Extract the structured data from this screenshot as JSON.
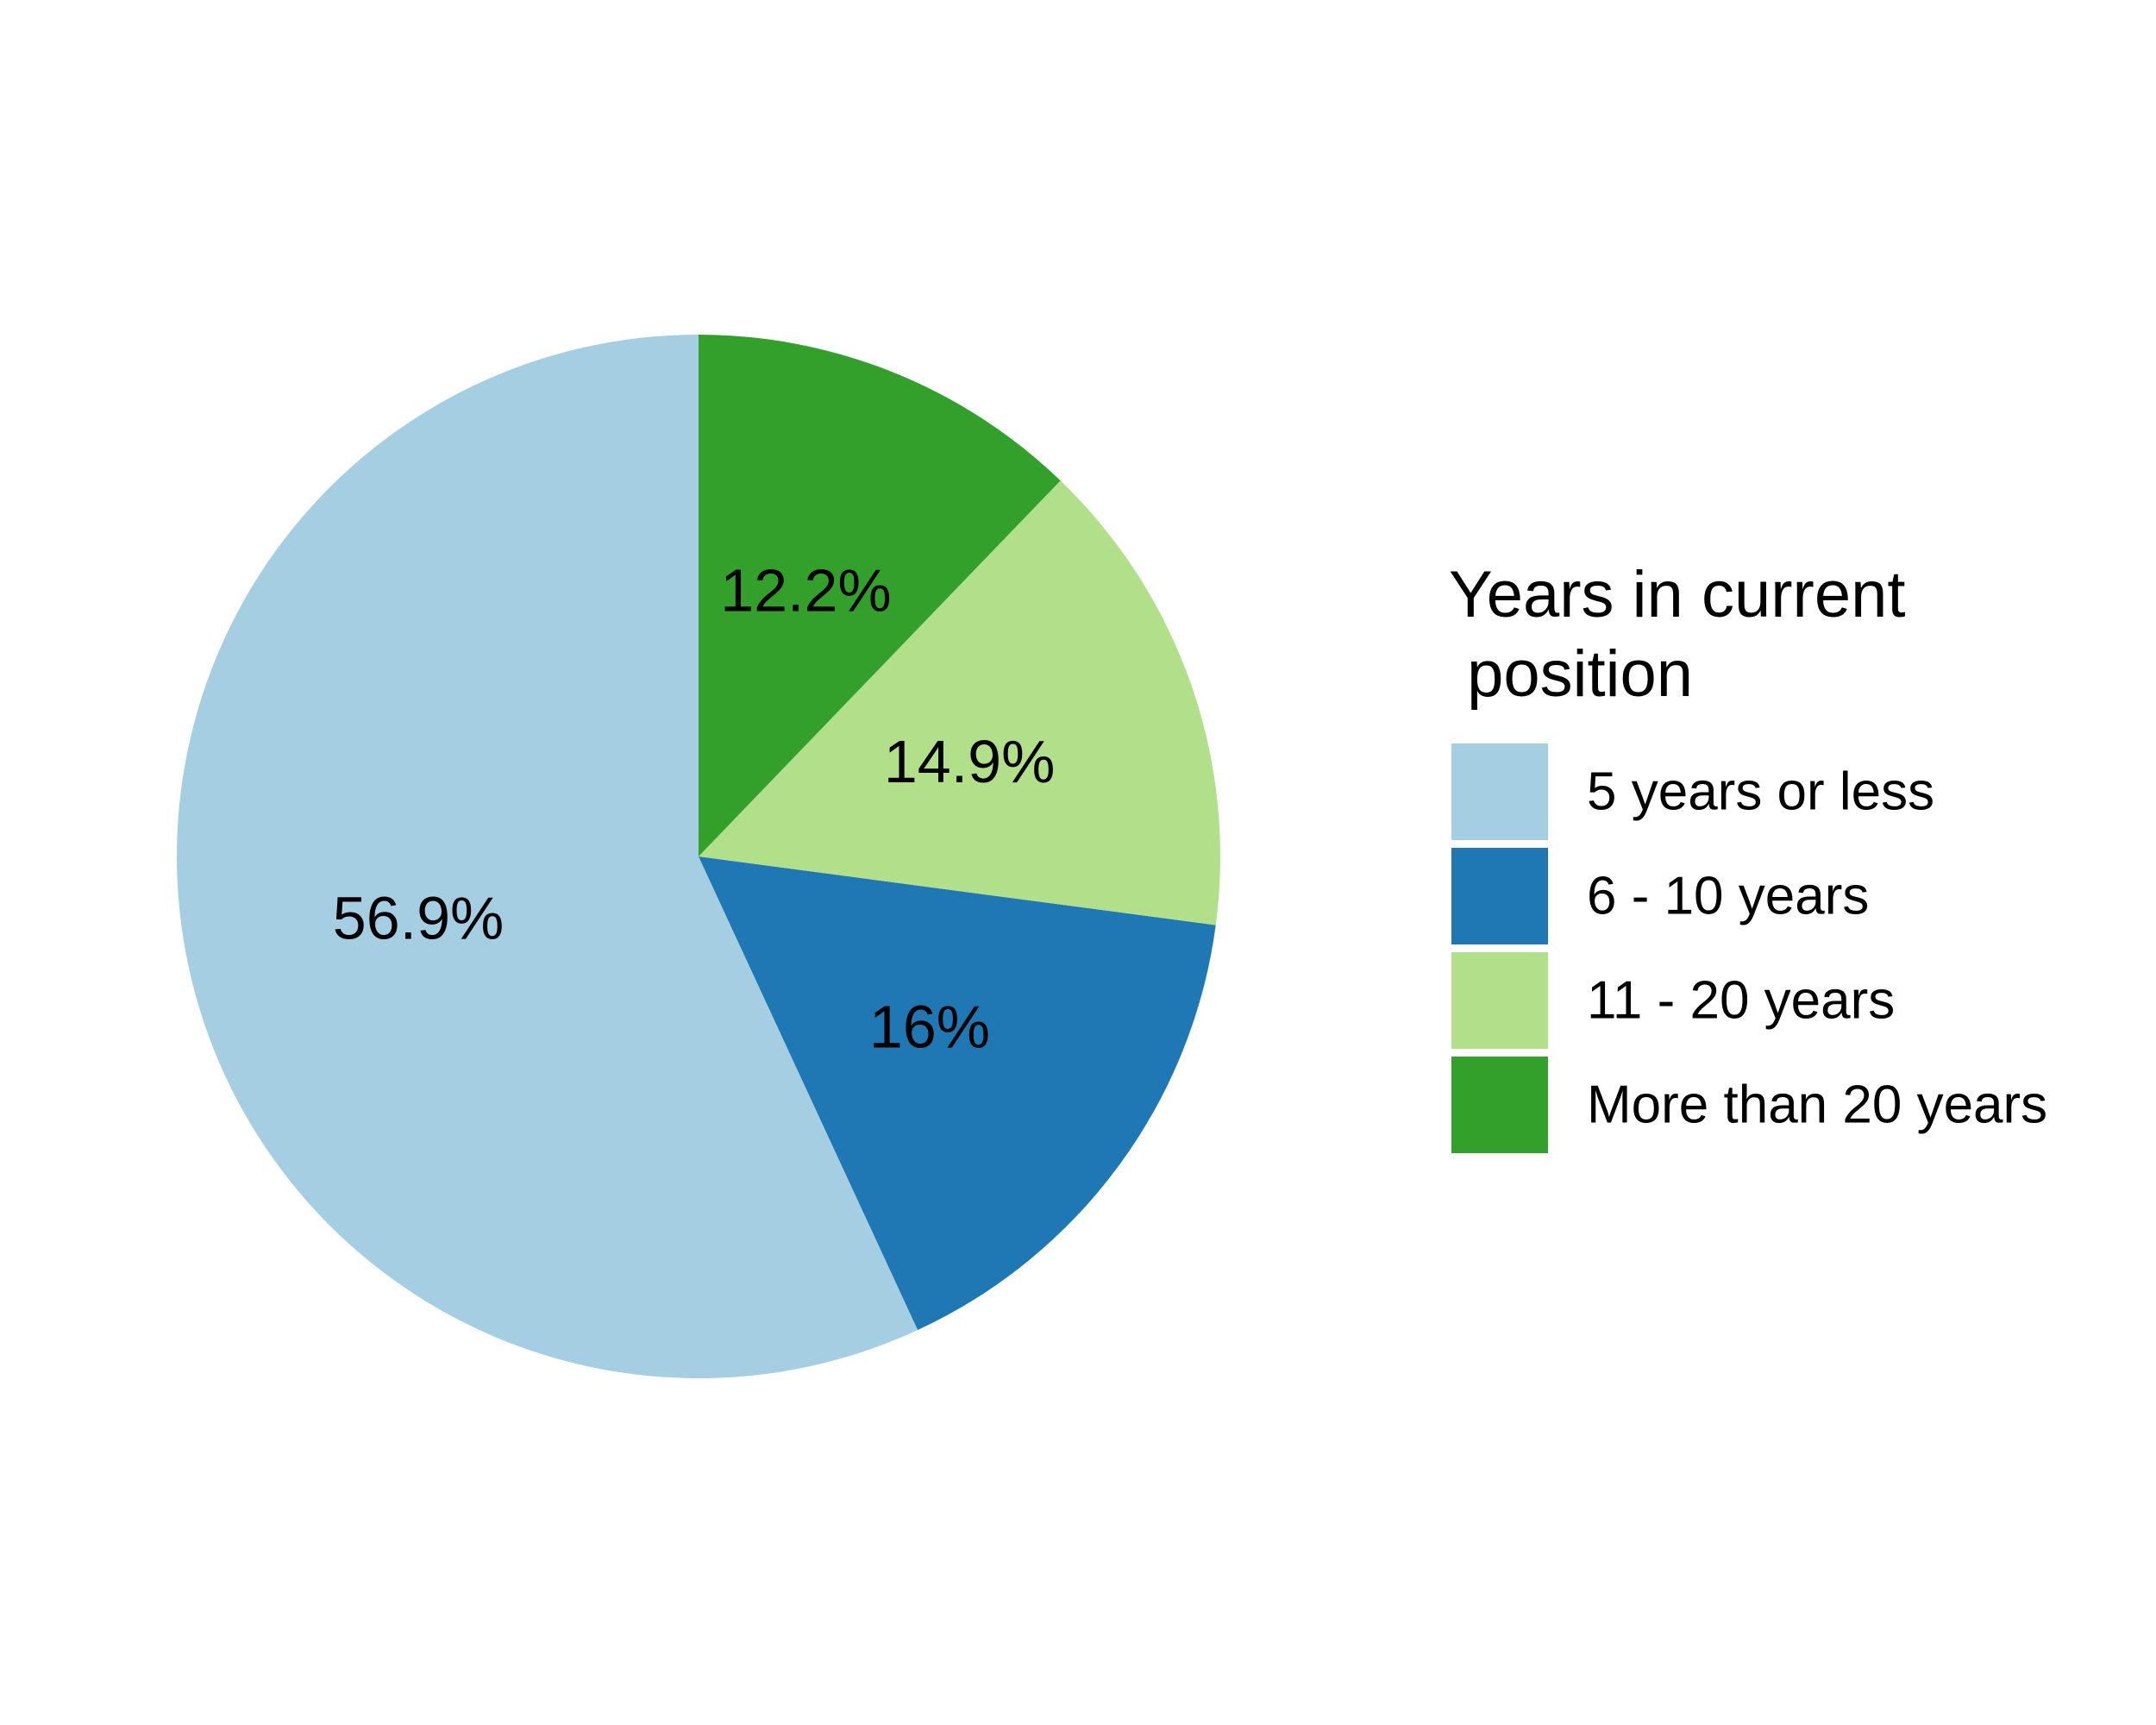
{
  "chart_data": {
    "type": "pie",
    "legend_title_lines": [
      "Years in current",
      " position"
    ],
    "legend_position": "right",
    "start": "top",
    "direction": "counterclockwise",
    "slices": [
      {
        "category": "5 years or less",
        "value": 56.9,
        "label": "56.9%",
        "color": "#a6cee3"
      },
      {
        "category": "6 - 10 years",
        "value": 16.0,
        "label": "16%",
        "color": "#1f78b4"
      },
      {
        "category": "11 - 20 years",
        "value": 14.9,
        "label": "14.9%",
        "color": "#b2df8a"
      },
      {
        "category": "More than 20 years",
        "value": 12.2,
        "label": "12.2%",
        "color": "#33a02c"
      }
    ]
  }
}
